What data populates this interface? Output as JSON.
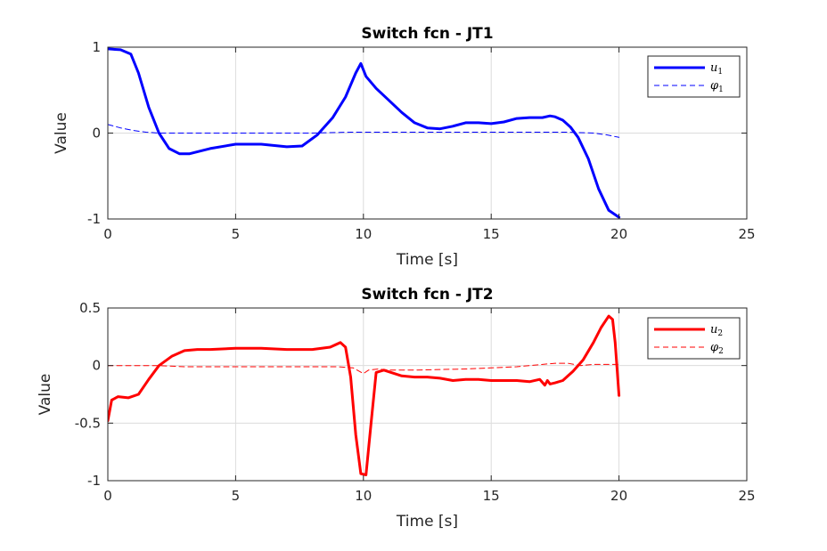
{
  "chart_data": [
    {
      "type": "line",
      "title": "Switch fcn - JT1",
      "xlabel": "Time [s]",
      "ylabel": "Value",
      "xlim": [
        0,
        25
      ],
      "ylim": [
        -1,
        1
      ],
      "xticks": [
        0,
        5,
        10,
        15,
        20,
        25
      ],
      "xtick_labels": [
        "0",
        "5",
        "10",
        "15",
        "20",
        "25"
      ],
      "yticks": [
        -1,
        0,
        1
      ],
      "ytick_labels": [
        "-1",
        "0",
        "1"
      ],
      "grid": true,
      "legend_position": "top-right",
      "series": [
        {
          "name": "u_1",
          "legend_symbol": "u",
          "legend_sub": "1",
          "color": "#0000ff",
          "style": "solid",
          "x": [
            0,
            0.5,
            0.9,
            1.2,
            1.6,
            2.0,
            2.4,
            2.8,
            3.2,
            4.0,
            5.0,
            6.0,
            7.0,
            7.6,
            8.2,
            8.8,
            9.3,
            9.7,
            9.9,
            10.1,
            10.5,
            11.0,
            11.5,
            12.0,
            12.5,
            13.0,
            13.5,
            14.0,
            14.5,
            15.0,
            15.5,
            16.0,
            16.5,
            17.0,
            17.3,
            17.5,
            17.8,
            18.1,
            18.4,
            18.8,
            19.2,
            19.6,
            20.0
          ],
          "y": [
            0.98,
            0.97,
            0.92,
            0.7,
            0.3,
            0.0,
            -0.18,
            -0.24,
            -0.24,
            -0.18,
            -0.13,
            -0.13,
            -0.16,
            -0.15,
            -0.02,
            0.18,
            0.42,
            0.7,
            0.81,
            0.66,
            0.52,
            0.38,
            0.24,
            0.12,
            0.06,
            0.05,
            0.08,
            0.12,
            0.12,
            0.11,
            0.13,
            0.17,
            0.18,
            0.18,
            0.2,
            0.19,
            0.15,
            0.07,
            -0.05,
            -0.3,
            -0.65,
            -0.9,
            -0.98
          ]
        },
        {
          "name": "phi_1",
          "legend_symbol": "φ",
          "legend_sub": "1",
          "color": "#0000ff",
          "style": "dashed",
          "x": [
            0,
            0.5,
            1.0,
            1.5,
            2.0,
            2.5,
            3.0,
            5.0,
            8.0,
            9.5,
            10.0,
            11.0,
            13.0,
            15.0,
            17.0,
            18.0,
            19.0,
            19.5,
            20.0
          ],
          "y": [
            0.1,
            0.06,
            0.03,
            0.01,
            0.0,
            0.0,
            0.0,
            0.0,
            0.0,
            0.01,
            0.01,
            0.01,
            0.01,
            0.01,
            0.01,
            0.01,
            0.0,
            -0.02,
            -0.05
          ]
        }
      ]
    },
    {
      "type": "line",
      "title": "Switch fcn - JT2",
      "xlabel": "Time [s]",
      "ylabel": "Value",
      "xlim": [
        0,
        25
      ],
      "ylim": [
        -1,
        0.5
      ],
      "xticks": [
        0,
        5,
        10,
        15,
        20,
        25
      ],
      "xtick_labels": [
        "0",
        "5",
        "10",
        "15",
        "20",
        "25"
      ],
      "yticks": [
        -1,
        -0.5,
        0,
        0.5
      ],
      "ytick_labels": [
        "-1",
        "-0.5",
        "0",
        "0.5"
      ],
      "grid": true,
      "legend_position": "top-right",
      "series": [
        {
          "name": "u_2",
          "legend_symbol": "u",
          "legend_sub": "2",
          "color": "#ff0000",
          "style": "solid",
          "x": [
            0,
            0.15,
            0.4,
            0.8,
            1.2,
            1.6,
            2.0,
            2.5,
            3.0,
            3.5,
            4.0,
            5.0,
            6.0,
            7.0,
            8.0,
            8.7,
            9.1,
            9.3,
            9.5,
            9.7,
            9.9,
            10.1,
            10.3,
            10.5,
            10.8,
            11.5,
            12.0,
            12.5,
            13.0,
            13.5,
            14.0,
            14.5,
            15.0,
            15.5,
            16.0,
            16.5,
            16.9,
            17.1,
            17.2,
            17.3,
            17.5,
            17.8,
            18.2,
            18.6,
            19.0,
            19.3,
            19.6,
            19.75,
            19.85,
            20.0
          ],
          "y": [
            -0.48,
            -0.3,
            -0.27,
            -0.28,
            -0.25,
            -0.12,
            0.0,
            0.08,
            0.13,
            0.14,
            0.14,
            0.15,
            0.15,
            0.14,
            0.14,
            0.16,
            0.2,
            0.16,
            -0.1,
            -0.6,
            -0.94,
            -0.95,
            -0.5,
            -0.06,
            -0.04,
            -0.09,
            -0.1,
            -0.1,
            -0.11,
            -0.13,
            -0.12,
            -0.12,
            -0.13,
            -0.13,
            -0.13,
            -0.14,
            -0.12,
            -0.17,
            -0.13,
            -0.16,
            -0.15,
            -0.13,
            -0.05,
            0.05,
            0.2,
            0.33,
            0.43,
            0.4,
            0.2,
            -0.26
          ]
        },
        {
          "name": "phi_2",
          "legend_symbol": "φ",
          "legend_sub": "2",
          "color": "#ff0000",
          "style": "dashed",
          "x": [
            0,
            1.0,
            2.0,
            3.0,
            5.0,
            7.0,
            9.0,
            9.6,
            10.0,
            10.2,
            10.6,
            11.0,
            12.0,
            14.0,
            16.0,
            17.5,
            18.0,
            18.5,
            19.0,
            19.5,
            20.0
          ],
          "y": [
            0.0,
            0.0,
            0.0,
            -0.01,
            -0.01,
            -0.01,
            -0.01,
            -0.02,
            -0.07,
            -0.04,
            -0.03,
            -0.04,
            -0.04,
            -0.03,
            -0.01,
            0.02,
            0.02,
            0.0,
            0.01,
            0.01,
            0.01
          ]
        }
      ]
    }
  ]
}
